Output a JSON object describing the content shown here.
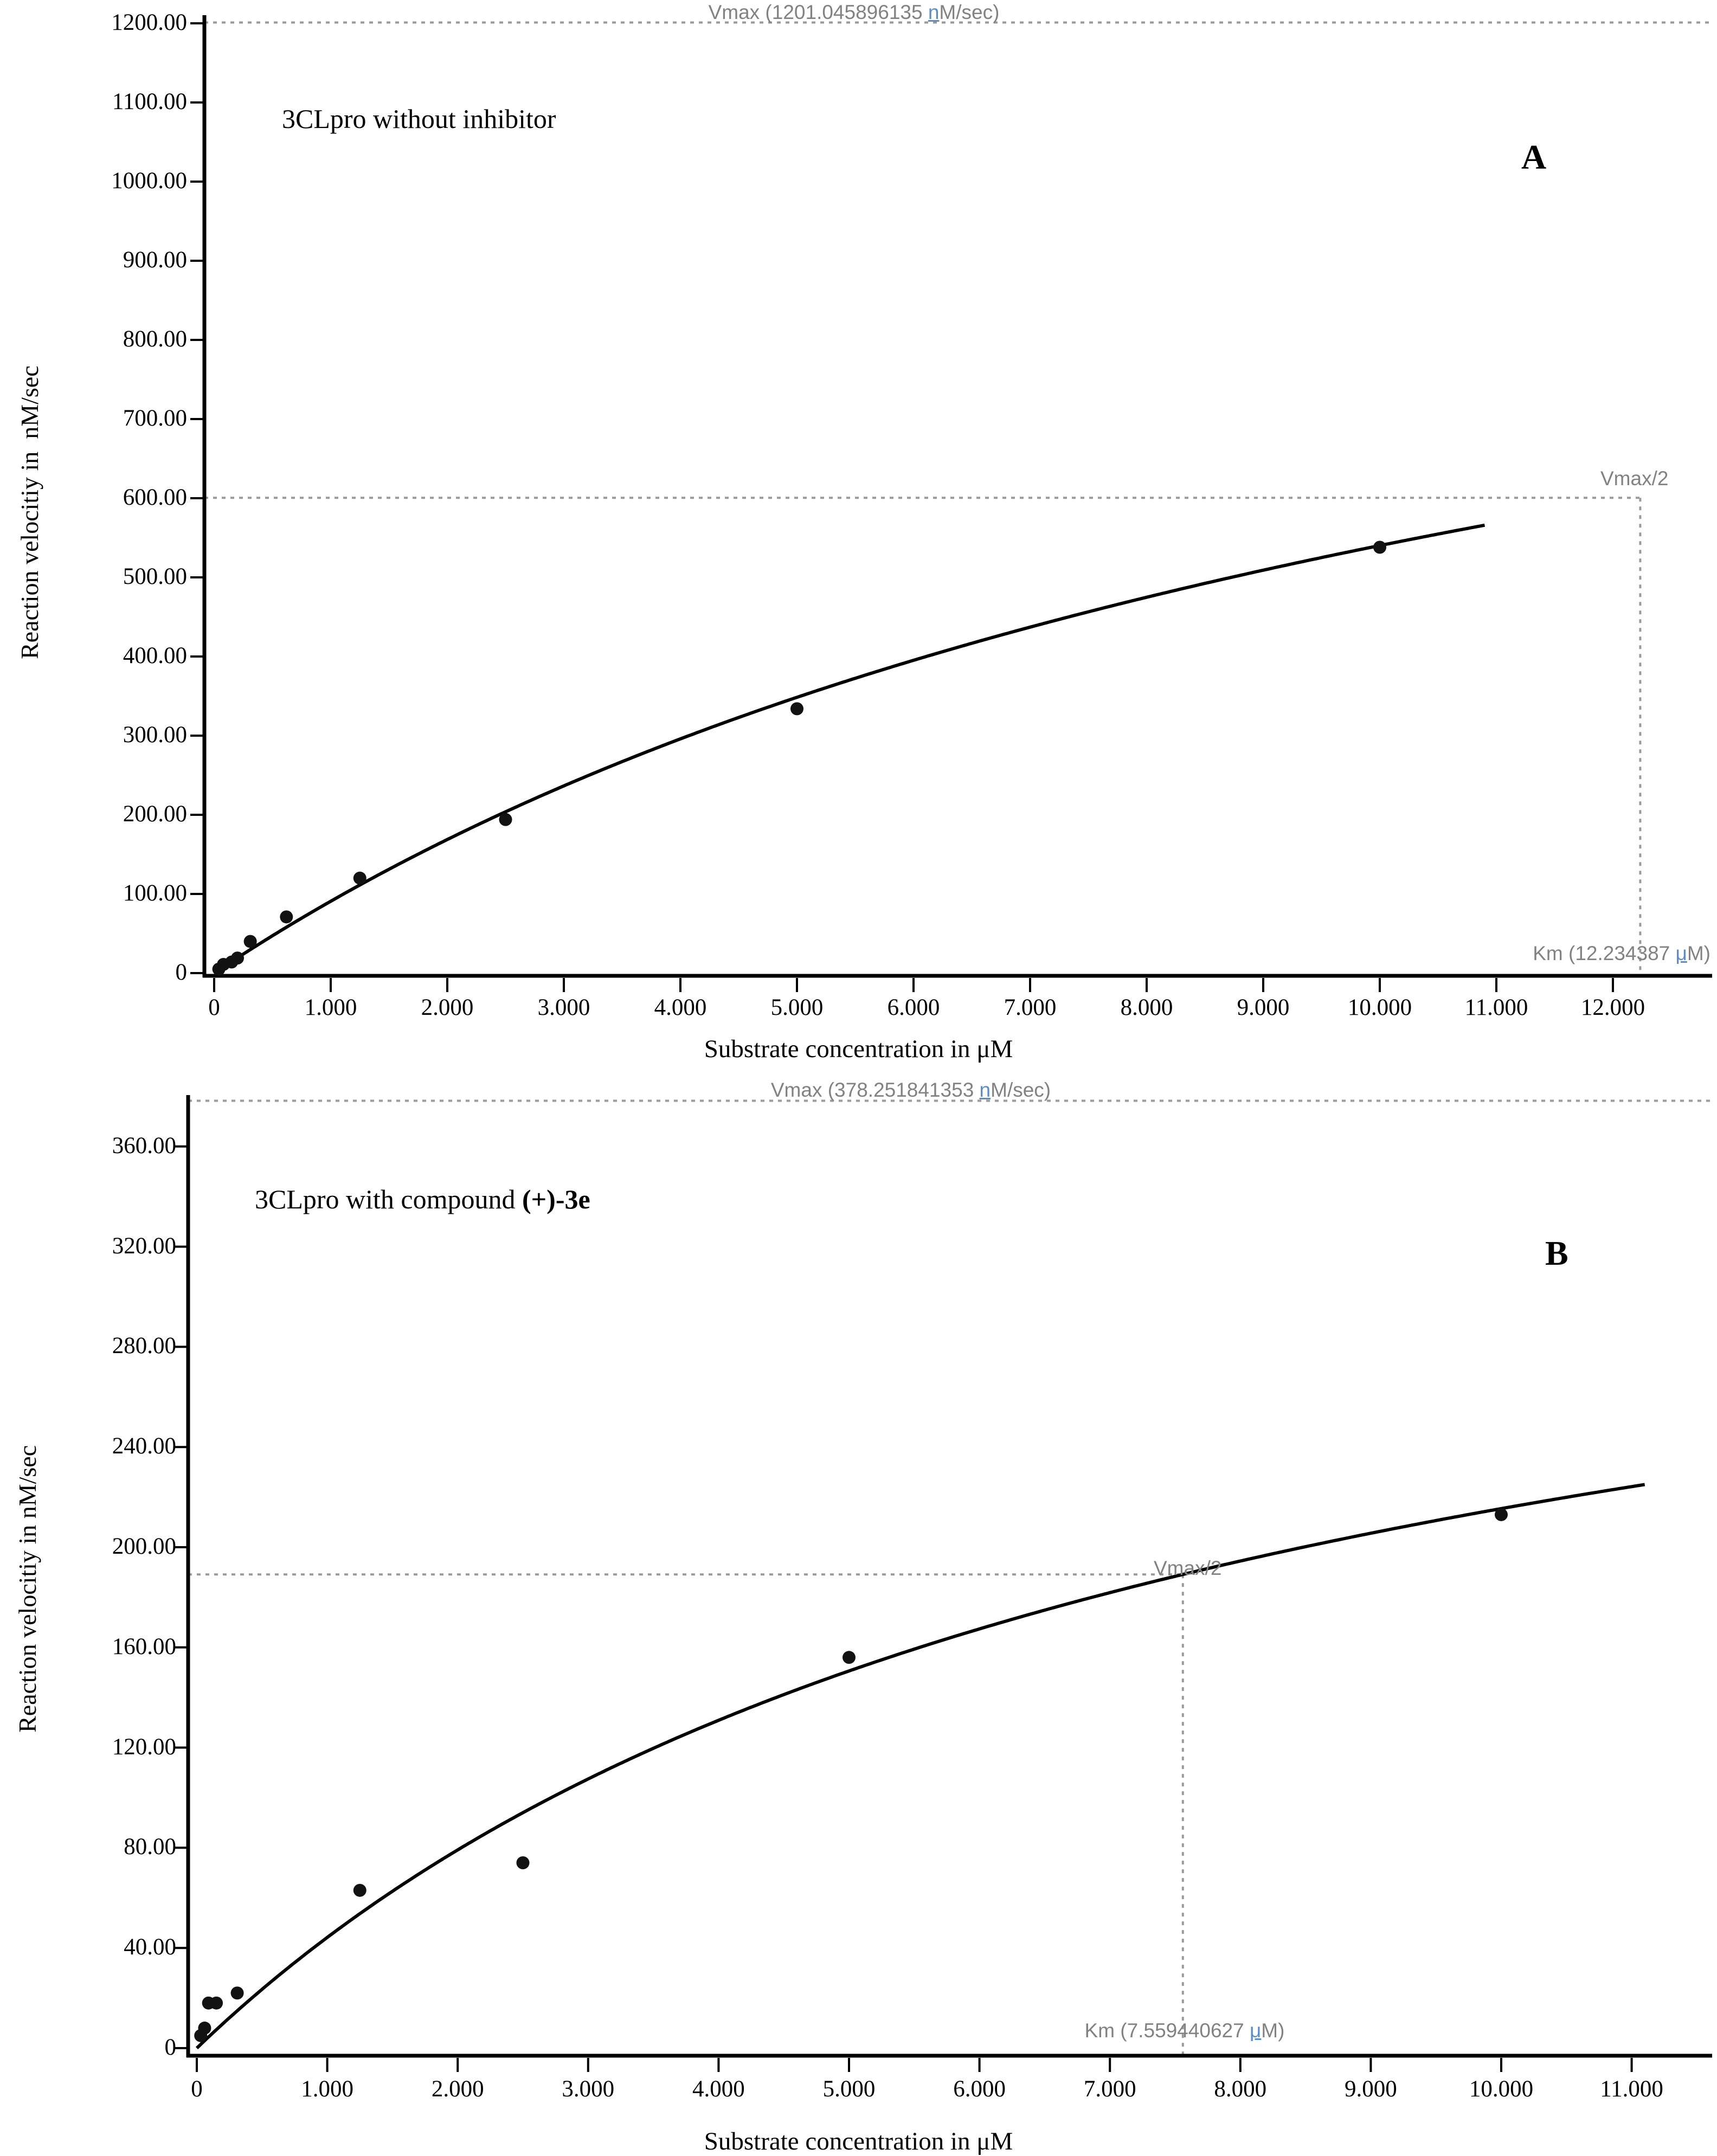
{
  "panel_a": {
    "title_normal": "3CLpro without inhibitor",
    "title_bold": "",
    "corner_label": "A",
    "y_axis_title": "Reaction velocitiy in  nM/sec",
    "x_axis_title": "Substrate concentration in μM",
    "vmax_annotation": {
      "pre": "Vmax (1201.045896135 ",
      "n": "n",
      "post": "M/sec)"
    },
    "vmax_half_label": "Vmax/2",
    "km_annotation": {
      "pre": "Km (12.234387 ",
      "mu": "μ",
      "post": "M)"
    }
  },
  "panel_b": {
    "title_normal": "3CLpro with compound ",
    "title_bold": "(+)-3e",
    "corner_label": "B",
    "y_axis_title": "Reaction velocitiy in nM/sec",
    "x_axis_title": "Substrate concentration in μM",
    "vmax_annotation": {
      "pre": "Vmax (378.251841353 ",
      "n": "n",
      "post": "M/sec)"
    },
    "vmax_half_label": "Vmax/2",
    "km_annotation": {
      "pre": "Km (7.559440627 ",
      "mu": "μ",
      "post": "M)"
    }
  },
  "colors": {
    "curve": "#000000",
    "points": "#121212",
    "dashed_guides": "#9a9a9a",
    "annotation_text": "#828282",
    "spellcheck_glyph": "#5b8ec4"
  },
  "chart_data": [
    {
      "type": "scatter",
      "panel": "A",
      "title": "3CLpro without inhibitor",
      "xlabel": "Substrate concentration in μM",
      "ylabel": "Reaction velocitiy in nM/sec",
      "xlim": [
        0,
        12.4
      ],
      "ylim": [
        0,
        1210
      ],
      "grid": false,
      "legend": "none",
      "fit_model": "Michaelis-Menten V = Vmax*S/(Km+S)",
      "vmax": 1201.045896135,
      "km": 12.234387,
      "vmax_half": 600.52,
      "curve_s_end": 10.9,
      "x_ticks": [
        0,
        1,
        2,
        3,
        4,
        5,
        6,
        7,
        8,
        9,
        10,
        11,
        12
      ],
      "x_tick_labels": [
        "0",
        "1.000",
        "2.000",
        "3.000",
        "4.000",
        "5.000",
        "6.000",
        "7.000",
        "8.000",
        "9.000",
        "10.000",
        "11.000",
        "12.000"
      ],
      "y_ticks": [
        0,
        100,
        200,
        300,
        400,
        500,
        600,
        700,
        800,
        900,
        1000,
        1100,
        1200
      ],
      "y_tick_labels": [
        "0",
        "100.00",
        "200.00",
        "300.00",
        "400.00",
        "500.00",
        "600.00",
        "700.00",
        "800.00",
        "900.00",
        "1000.00",
        "1100.00",
        "1200.00"
      ],
      "points": [
        [
          0.04,
          5
        ],
        [
          0.08,
          11
        ],
        [
          0.15,
          14
        ],
        [
          0.2,
          19
        ],
        [
          0.31,
          40
        ],
        [
          0.62,
          71
        ],
        [
          1.25,
          120
        ],
        [
          2.5,
          194
        ],
        [
          5,
          334
        ],
        [
          10,
          538
        ]
      ],
      "annotations": [
        "Vmax (1201.045896135 nM/sec)",
        "Vmax/2",
        "Km (12.234387 μM)"
      ]
    },
    {
      "type": "scatter",
      "panel": "B",
      "title": "3CLpro with compound (+)-3e",
      "xlabel": "Substrate concentration in μM",
      "ylabel": "Reaction velocitiy in nM/sec",
      "xlim": [
        0,
        11.4
      ],
      "ylim": [
        0,
        382
      ],
      "grid": false,
      "legend": "none",
      "fit_model": "Michaelis-Menten V = Vmax*S/(Km+S)",
      "vmax": 378.251841353,
      "km": 7.559440627,
      "vmax_half": 189.13,
      "curve_s_end": 11.1,
      "x_ticks": [
        0,
        1,
        2,
        3,
        4,
        5,
        6,
        7,
        8,
        9,
        10,
        11
      ],
      "x_tick_labels": [
        "0",
        "1.000",
        "2.000",
        "3.000",
        "4.000",
        "5.000",
        "6.000",
        "7.000",
        "8.000",
        "9.000",
        "10.000",
        "11.000"
      ],
      "y_ticks": [
        0,
        40,
        80,
        120,
        160,
        200,
        240,
        280,
        320,
        360
      ],
      "y_tick_labels": [
        "0",
        "40.00",
        "80.00",
        "120.00",
        "160.00",
        "200.00",
        "240.00",
        "280.00",
        "320.00",
        "360.00"
      ],
      "points": [
        [
          0.03,
          5
        ],
        [
          0.06,
          8
        ],
        [
          0.09,
          18
        ],
        [
          0.15,
          18
        ],
        [
          0.31,
          22
        ],
        [
          1.25,
          63
        ],
        [
          2.5,
          74
        ],
        [
          5,
          156
        ],
        [
          10,
          213
        ]
      ],
      "annotations": [
        "Vmax (378.251841353 nM/sec)",
        "Vmax/2",
        "Km (7.559440627 μM)"
      ]
    }
  ]
}
